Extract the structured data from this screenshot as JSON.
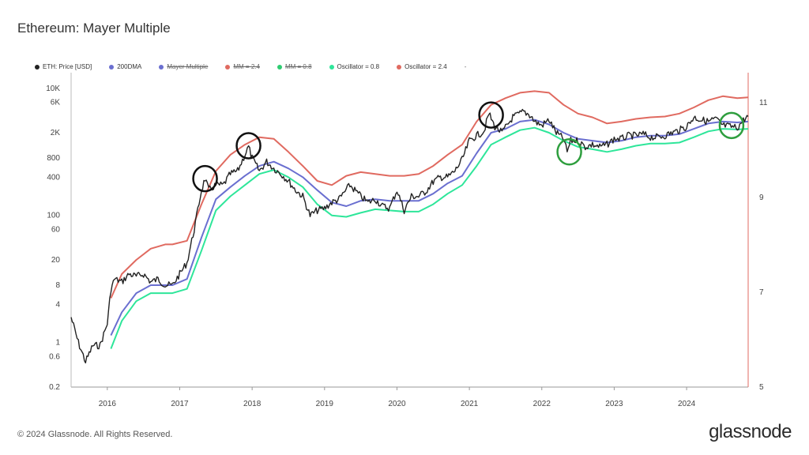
{
  "title": "Ethereum: Mayer Multiple",
  "footer": "© 2024 Glassnode. All Rights Reserved.",
  "brand": "glassnode",
  "legend": [
    {
      "label": "ETH: Price [USD]",
      "color": "#222222",
      "hidden": false
    },
    {
      "label": "200DMA",
      "color": "#6a6fd0",
      "hidden": false
    },
    {
      "label": "Mayer Multiple",
      "color": "#6a6fd0",
      "hidden": true
    },
    {
      "label": "MM = 2.4",
      "color": "#e06a60",
      "hidden": true
    },
    {
      "label": "MM = 0.8",
      "color": "#2ecc71",
      "hidden": true
    },
    {
      "label": "Oscillator = 0.8",
      "color": "#2ee69a",
      "hidden": false
    },
    {
      "label": "Oscillator = 2.4",
      "color": "#e06a60",
      "hidden": false
    }
  ],
  "legend_extra": "-",
  "chart_data": {
    "type": "line",
    "y_scale": "log",
    "ylim": [
      0.2,
      14000
    ],
    "y_ticks": [
      "10K",
      "6K",
      "2K",
      "800",
      "400",
      "100",
      "60",
      "20",
      "8",
      "4",
      "1",
      "0.6",
      "0.2"
    ],
    "y_tick_values": [
      10000,
      6000,
      2000,
      800,
      400,
      100,
      60,
      20,
      8,
      4,
      1,
      0.6,
      0.2
    ],
    "y2_ticks": [
      "11",
      "9",
      "7",
      "5"
    ],
    "y2_tick_values": [
      11,
      9,
      7,
      5
    ],
    "y2lim": [
      5,
      11.5
    ],
    "x_ticks": [
      "2016",
      "2017",
      "2018",
      "2019",
      "2020",
      "2021",
      "2022",
      "2023",
      "2024"
    ],
    "x_tick_values": [
      2016.0,
      2017.0,
      2018.0,
      2019.0,
      2020.0,
      2021.0,
      2022.0,
      2023.0,
      2024.0
    ],
    "xlim": [
      2015.6,
      2024.95
    ],
    "grid": false,
    "series": [
      {
        "name": "ETH: Price [USD]",
        "color": "#222222",
        "x": [
          2015.6,
          2015.7,
          2015.8,
          2015.9,
          2016.0,
          2016.1,
          2016.15,
          2016.2,
          2016.3,
          2016.4,
          2016.5,
          2016.6,
          2016.7,
          2016.8,
          2016.9,
          2017.0,
          2017.1,
          2017.2,
          2017.3,
          2017.4,
          2017.45,
          2017.5,
          2017.6,
          2017.7,
          2017.8,
          2017.9,
          2018.0,
          2018.05,
          2018.1,
          2018.2,
          2018.3,
          2018.4,
          2018.5,
          2018.6,
          2018.7,
          2018.8,
          2018.9,
          2019.0,
          2019.1,
          2019.2,
          2019.3,
          2019.45,
          2019.6,
          2019.7,
          2019.8,
          2019.9,
          2020.0,
          2020.1,
          2020.2,
          2020.3,
          2020.4,
          2020.5,
          2020.6,
          2020.7,
          2020.8,
          2020.9,
          2021.0,
          2021.1,
          2021.2,
          2021.3,
          2021.37,
          2021.45,
          2021.55,
          2021.7,
          2021.85,
          2021.95,
          2022.0,
          2022.1,
          2022.2,
          2022.3,
          2022.4,
          2022.45,
          2022.5,
          2022.6,
          2022.7,
          2022.8,
          2022.9,
          2023.0,
          2023.1,
          2023.2,
          2023.3,
          2023.4,
          2023.5,
          2023.6,
          2023.7,
          2023.8,
          2023.9,
          2024.0,
          2024.1,
          2024.2,
          2024.3,
          2024.4,
          2024.5,
          2024.6,
          2024.7,
          2024.8,
          2024.9,
          2024.95
        ],
        "values": [
          2.5,
          1.0,
          0.5,
          0.9,
          0.9,
          2.0,
          7,
          10,
          9,
          12,
          11,
          12,
          9,
          10,
          8,
          8,
          12,
          18,
          60,
          250,
          380,
          250,
          300,
          300,
          450,
          500,
          900,
          1200,
          800,
          500,
          700,
          550,
          450,
          350,
          250,
          200,
          100,
          120,
          130,
          160,
          180,
          300,
          200,
          160,
          180,
          140,
          130,
          250,
          120,
          200,
          200,
          240,
          340,
          400,
          400,
          500,
          750,
          1500,
          1800,
          2100,
          4000,
          2500,
          2000,
          3500,
          4300,
          3700,
          3000,
          2600,
          3200,
          2000,
          1600,
          1000,
          1500,
          1500,
          1200,
          1300,
          1200,
          1300,
          1600,
          1600,
          1800,
          1800,
          1900,
          1700,
          1700,
          1800,
          2000,
          2200,
          2500,
          3500,
          3200,
          3000,
          3300,
          2600,
          2500,
          2400,
          3300,
          3600
        ]
      },
      {
        "name": "200DMA",
        "color": "#6a6fd0",
        "x": [
          2016.15,
          2016.3,
          2016.5,
          2016.7,
          2016.9,
          2017.0,
          2017.2,
          2017.4,
          2017.6,
          2017.8,
          2018.0,
          2018.2,
          2018.4,
          2018.6,
          2018.8,
          2019.0,
          2019.2,
          2019.4,
          2019.6,
          2019.8,
          2020.0,
          2020.2,
          2020.4,
          2020.6,
          2020.8,
          2021.0,
          2021.2,
          2021.4,
          2021.6,
          2021.8,
          2022.0,
          2022.2,
          2022.4,
          2022.6,
          2022.8,
          2023.0,
          2023.2,
          2023.4,
          2023.6,
          2023.8,
          2024.0,
          2024.2,
          2024.4,
          2024.6,
          2024.8,
          2024.95
        ],
        "values": [
          1.3,
          3,
          6,
          8,
          8,
          8,
          10,
          45,
          180,
          280,
          420,
          600,
          700,
          550,
          400,
          250,
          160,
          140,
          170,
          180,
          170,
          170,
          170,
          220,
          320,
          420,
          950,
          2000,
          2300,
          3000,
          3200,
          2700,
          2000,
          1600,
          1500,
          1400,
          1500,
          1700,
          1800,
          1800,
          1900,
          2300,
          2800,
          3000,
          2900,
          3000
        ]
      },
      {
        "name": "Oscillator = 0.8",
        "color": "#2ee69a",
        "x": [
          2016.15,
          2016.3,
          2016.5,
          2016.7,
          2016.9,
          2017.0,
          2017.2,
          2017.4,
          2017.6,
          2017.8,
          2018.0,
          2018.2,
          2018.4,
          2018.6,
          2018.8,
          2019.0,
          2019.2,
          2019.4,
          2019.6,
          2019.8,
          2020.0,
          2020.2,
          2020.4,
          2020.6,
          2020.8,
          2021.0,
          2021.2,
          2021.4,
          2021.6,
          2021.8,
          2022.0,
          2022.2,
          2022.4,
          2022.6,
          2022.8,
          2023.0,
          2023.2,
          2023.4,
          2023.6,
          2023.8,
          2024.0,
          2024.2,
          2024.4,
          2024.6,
          2024.8,
          2024.95
        ],
        "values": [
          0.8,
          2.2,
          4.5,
          6,
          6,
          6,
          7,
          28,
          120,
          200,
          300,
          450,
          520,
          400,
          280,
          150,
          100,
          95,
          110,
          125,
          120,
          115,
          115,
          150,
          220,
          300,
          600,
          1300,
          1700,
          2200,
          2400,
          2000,
          1500,
          1200,
          1100,
          1000,
          1100,
          1250,
          1350,
          1350,
          1400,
          1700,
          2100,
          2300,
          2250,
          2300
        ]
      },
      {
        "name": "Oscillator = 2.4",
        "color": "#e06a60",
        "x": [
          2016.15,
          2016.3,
          2016.5,
          2016.7,
          2016.9,
          2017.0,
          2017.2,
          2017.4,
          2017.6,
          2017.8,
          2018.0,
          2018.2,
          2018.4,
          2018.6,
          2018.8,
          2019.0,
          2019.2,
          2019.4,
          2019.6,
          2019.8,
          2020.0,
          2020.2,
          2020.4,
          2020.6,
          2020.8,
          2021.0,
          2021.2,
          2021.4,
          2021.6,
          2021.8,
          2022.0,
          2022.2,
          2022.4,
          2022.6,
          2022.8,
          2023.0,
          2023.2,
          2023.4,
          2023.6,
          2023.8,
          2024.0,
          2024.2,
          2024.4,
          2024.6,
          2024.8,
          2024.95
        ],
        "values": [
          5,
          12,
          20,
          30,
          35,
          35,
          40,
          150,
          500,
          900,
          1300,
          1700,
          1600,
          1000,
          600,
          350,
          300,
          420,
          480,
          450,
          420,
          420,
          450,
          600,
          900,
          1300,
          3000,
          5500,
          7000,
          8500,
          9000,
          8500,
          5500,
          4000,
          3500,
          2800,
          3000,
          3300,
          3500,
          3600,
          4000,
          5000,
          6500,
          7500,
          7000,
          7200
        ]
      }
    ],
    "annotations": [
      {
        "shape": "circle",
        "color": "#111111",
        "x": 2017.45,
        "y": 380
      },
      {
        "shape": "circle",
        "color": "#111111",
        "x": 2018.05,
        "y": 1250
      },
      {
        "shape": "circle",
        "color": "#111111",
        "x": 2021.4,
        "y": 3800
      },
      {
        "shape": "circle",
        "color": "#2e9e3e",
        "x": 2022.48,
        "y": 1000
      },
      {
        "shape": "circle",
        "color": "#2e9e3e",
        "x": 2024.72,
        "y": 2600
      }
    ]
  }
}
